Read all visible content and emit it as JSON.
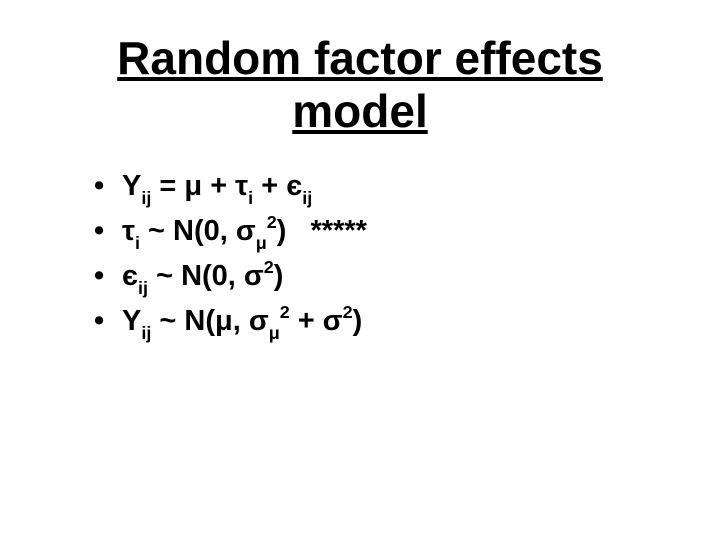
{
  "type": "slide",
  "background_color": "#ffffff",
  "text_color": "#000000",
  "title": {
    "text": "Random factor effects model",
    "fontsize": 46,
    "fontweight": "bold",
    "underline": true,
    "align": "center"
  },
  "bullets": {
    "fontsize": 29,
    "fontweight": "bold",
    "marker": "•",
    "items": [
      {
        "html": "Y<span class=\"sub\">ij</span> = μ + τ<span class=\"sub\">i</span> + є<span class=\"sub\">ij</span>"
      },
      {
        "html": "τ<span class=\"sub\">i</span> ~ N(0, σ<span class=\"sub\">μ</span><span class=\"sup\">2</span>)&nbsp;&nbsp;&nbsp;*****"
      },
      {
        "html": "є<span class=\"sub\">ij</span> ~ N(0, σ<span class=\"sup\">2</span>)"
      },
      {
        "html": "Y<span class=\"sub\">ij</span> ~ N(μ, σ<span class=\"sub\">μ</span><span class=\"sup\">2</span> + σ<span class=\"sup\">2</span>)"
      }
    ]
  }
}
